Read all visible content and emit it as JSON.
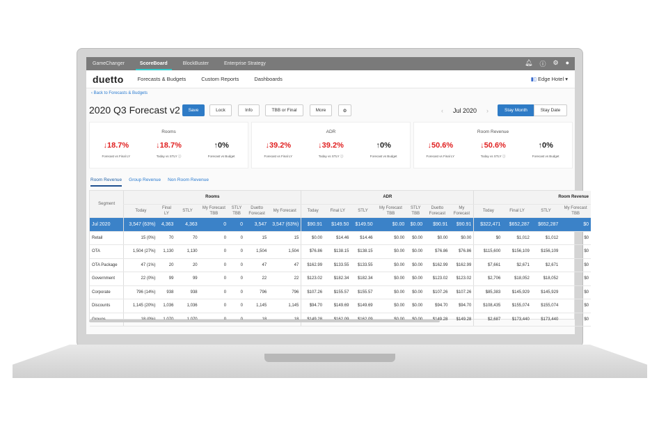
{
  "topbar": {
    "apps": [
      "GameChanger",
      "ScoreBoard",
      "BlockBuster",
      "Enterprise Strategy"
    ],
    "active": "ScoreBoard",
    "icons": [
      "bell-icon",
      "help-icon",
      "gear-icon",
      "user-icon"
    ]
  },
  "nav": {
    "logo": "duetto",
    "links": [
      "Forecasts & Budgets",
      "Custom Reports",
      "Dashboards"
    ],
    "hotel": "Edge Hotel"
  },
  "back_link": "Back to Forecasts & Budgets",
  "title": "2020 Q3 Forecast v2",
  "toolbar": {
    "save": "Save",
    "lock": "Lock",
    "info": "Info",
    "tbb": "TBB or Final",
    "more": "More"
  },
  "period": {
    "month": "Jul 2020",
    "stay_month": "Stay Month",
    "stay_date": "Stay Date",
    "selected": "Stay Month"
  },
  "cards": [
    {
      "title": "Rooms",
      "kpis": [
        {
          "value": "18.7%",
          "dir": "down",
          "label": "Forecast vs Final LY"
        },
        {
          "value": "18.7%",
          "dir": "down",
          "label": "Today vs STLY"
        },
        {
          "value": "0%",
          "dir": "up",
          "label": "Forecast vs Budget"
        }
      ]
    },
    {
      "title": "ADR",
      "kpis": [
        {
          "value": "39.2%",
          "dir": "down",
          "label": "Forecast vs Final LY"
        },
        {
          "value": "39.2%",
          "dir": "down",
          "label": "Today vs STLY"
        },
        {
          "value": "0%",
          "dir": "up",
          "label": "Forecast vs Budget"
        }
      ]
    },
    {
      "title": "Room Revenue",
      "kpis": [
        {
          "value": "50.6%",
          "dir": "down",
          "label": "Forecast vs Final LY"
        },
        {
          "value": "50.6%",
          "dir": "down",
          "label": "Today vs STLY"
        },
        {
          "value": "0%",
          "dir": "up",
          "label": "Forecast vs Budget"
        }
      ]
    }
  ],
  "tabs": [
    "Room Revenue",
    "Group Revenue",
    "Non Room Revenue"
  ],
  "active_tab": "Room Revenue",
  "colors": {
    "accent": "#2e7bc6",
    "down": "#e02020",
    "highlight_row": "#3b82c8"
  },
  "table": {
    "groups": [
      "Rooms",
      "ADR",
      "Room Revenue"
    ],
    "segment_header": "Segment",
    "columns": [
      "Today",
      "Final LY",
      "STLY",
      "My Forecast TBB",
      "STLY TBB",
      "Duetto Forecast",
      "My Forecast",
      "Today",
      "Final LY",
      "STLY",
      "My Forecast TBB",
      "STLY TBB",
      "Duetto Forecast",
      "My Forecast",
      "Today",
      "Final LY",
      "STLY",
      "My Forecast TBB"
    ],
    "rows": [
      [
        "Jul 2020",
        "3,547 (63%)",
        "4,363",
        "4,363",
        "0",
        "0",
        "3,547",
        "3,547 (63%)",
        "$90.91",
        "$149.50",
        "$149.50",
        "$0.00",
        "$0.00",
        "$90.91",
        "$90.91",
        "$322,471",
        "$652,287",
        "$652,287",
        "$0"
      ],
      [
        "Retail",
        "15 (0%)",
        "70",
        "70",
        "0",
        "0",
        "15",
        "15",
        "$0.00",
        "$14.46",
        "$14.46",
        "$0.00",
        "$0.00",
        "$0.00",
        "$0.00",
        "$0",
        "$1,012",
        "$1,012",
        "$0"
      ],
      [
        "OTA",
        "1,504 (27%)",
        "1,130",
        "1,130",
        "0",
        "0",
        "1,504",
        "1,504",
        "$76.86",
        "$138.15",
        "$138.15",
        "$0.00",
        "$0.00",
        "$76.86",
        "$76.86",
        "$115,600",
        "$156,109",
        "$156,109",
        "$0"
      ],
      [
        "OTA Package",
        "47 (1%)",
        "20",
        "20",
        "0",
        "0",
        "47",
        "47",
        "$162.99",
        "$133.55",
        "$133.55",
        "$0.00",
        "$0.00",
        "$162.99",
        "$162.99",
        "$7,661",
        "$2,671",
        "$2,671",
        "$0"
      ],
      [
        "Government",
        "22 (0%)",
        "99",
        "99",
        "0",
        "0",
        "22",
        "22",
        "$123.02",
        "$182.34",
        "$182.34",
        "$0.00",
        "$0.00",
        "$123.02",
        "$123.02",
        "$2,706",
        "$18,052",
        "$18,052",
        "$0"
      ],
      [
        "Corporate",
        "796 (14%)",
        "938",
        "938",
        "0",
        "0",
        "796",
        "796",
        "$107.26",
        "$155.57",
        "$155.57",
        "$0.00",
        "$0.00",
        "$107.26",
        "$107.26",
        "$85,383",
        "$145,929",
        "$145,929",
        "$0"
      ],
      [
        "Discounts",
        "1,145 (20%)",
        "1,036",
        "1,036",
        "0",
        "0",
        "1,145",
        "1,145",
        "$94.70",
        "$149.69",
        "$149.69",
        "$0.00",
        "$0.00",
        "$94.70",
        "$94.70",
        "$108,435",
        "$155,074",
        "$155,074",
        "$0"
      ],
      [
        "Groups",
        "18 (0%)",
        "1,070",
        "1,070",
        "0",
        "0",
        "18",
        "18",
        "$149.28",
        "$162.09",
        "$162.09",
        "$0.00",
        "$0.00",
        "$149.28",
        "$149.28",
        "$2,687",
        "$173,440",
        "$173,440",
        "$0"
      ]
    ]
  }
}
